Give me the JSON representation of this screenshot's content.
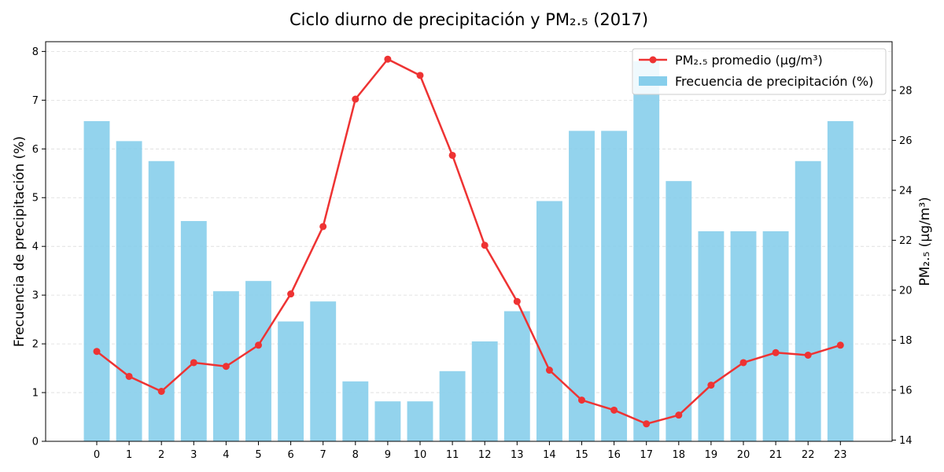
{
  "chart_data": {
    "type": "bar",
    "title": "Ciclo diurno de precipitación y PM₂.₅ (2017)",
    "categories": [
      "0",
      "1",
      "2",
      "3",
      "4",
      "5",
      "6",
      "7",
      "8",
      "9",
      "10",
      "11",
      "12",
      "13",
      "14",
      "15",
      "16",
      "17",
      "18",
      "19",
      "20",
      "21",
      "22",
      "23"
    ],
    "ylabel": "Frecuencia de precipitación (%)",
    "ylabel_right": "PM₂.₅ (μg/m³)",
    "ylim": [
      0,
      8.2
    ],
    "ylim_right": [
      13.95,
      29.95
    ],
    "yticks": [
      0,
      1,
      2,
      3,
      4,
      5,
      6,
      7,
      8
    ],
    "yticks_right": [
      14,
      16,
      18,
      20,
      22,
      24,
      26,
      28
    ],
    "grid": "horizontal dashed",
    "legend_position": "top-right",
    "series": [
      {
        "name": "Frecuencia de precipitación (%)",
        "type": "bar",
        "axis": "left",
        "color": "#87CEEB",
        "values": [
          6.57,
          6.16,
          5.75,
          4.52,
          3.08,
          3.29,
          2.46,
          2.87,
          1.23,
          0.82,
          0.82,
          1.44,
          2.05,
          2.67,
          4.93,
          6.37,
          6.37,
          7.8,
          5.34,
          4.31,
          4.31,
          4.31,
          5.75,
          6.57
        ]
      },
      {
        "name": "PM₂.₅ promedio (μg/m³)",
        "type": "line",
        "axis": "right",
        "color": "#EE3333",
        "values": [
          17.55,
          16.55,
          15.95,
          17.1,
          16.95,
          17.8,
          19.85,
          22.55,
          27.65,
          29.25,
          28.6,
          25.4,
          21.8,
          19.55,
          16.8,
          15.6,
          15.2,
          14.65,
          15.0,
          16.2,
          17.1,
          17.5,
          17.4,
          17.8
        ]
      }
    ]
  }
}
